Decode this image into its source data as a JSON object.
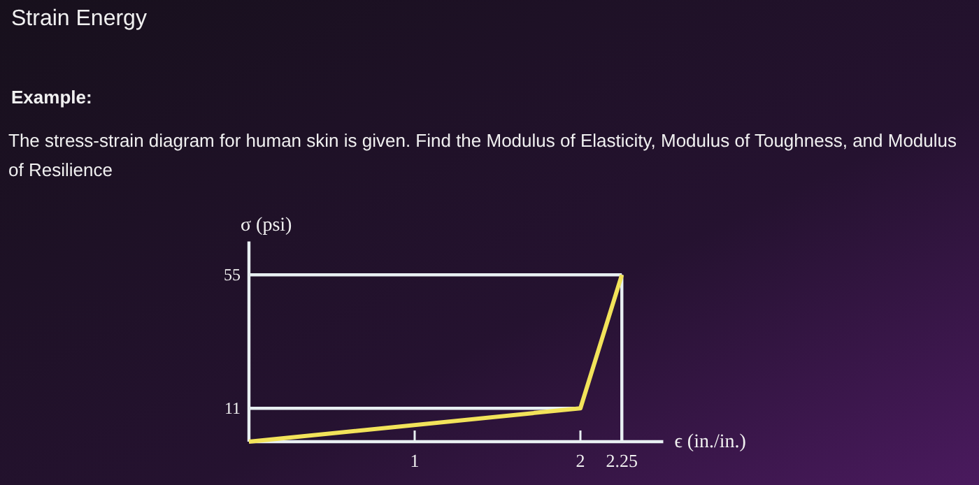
{
  "chart_data": {
    "type": "line",
    "title": "Strain Energy",
    "subtitle": "Example:",
    "annotations": [
      "The stress-strain diagram for human skin is given.  Find the Modulus of Elasticity, Modulus of Toughness, and Modulus of Resilience"
    ],
    "xlabel": "ϵ (in./in.)",
    "ylabel": "σ (psi)",
    "x": [
      0,
      2,
      2.25
    ],
    "series": [
      {
        "color": "#f2e35a",
        "values": [
          0,
          11,
          55
        ]
      }
    ],
    "xlim": [
      0,
      2.5
    ],
    "ylim": [
      0,
      66
    ],
    "xticks": [
      1,
      2,
      2.25
    ],
    "yticks": [
      11,
      55
    ],
    "ref_lines": [
      {
        "axis": "y",
        "value": 11,
        "color": "#e8f0f2"
      },
      {
        "axis": "y",
        "value": 55,
        "color": "#e8f0f2"
      },
      {
        "axis": "x",
        "value": 2.25,
        "color": "#e8f0f2"
      }
    ],
    "grid": false,
    "marker": "none",
    "line_style": "solid"
  }
}
